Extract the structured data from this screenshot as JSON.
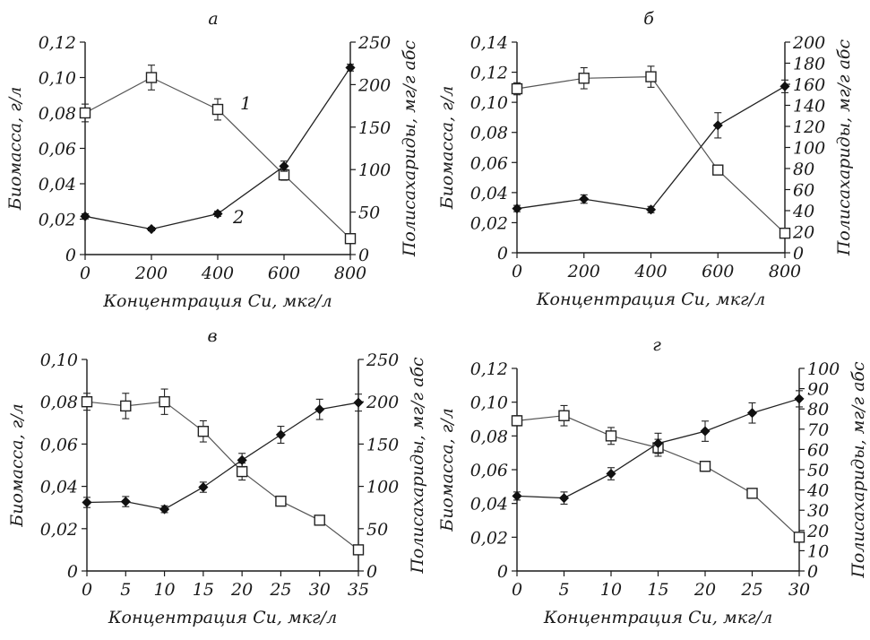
{
  "figure": {
    "panels_common": {
      "xlabel": "Концентрация Cu, мкг/л",
      "ylabel_left": "Биомасса, г/л",
      "ylabel_right": "Полисахариды, мг/г абс"
    }
  },
  "chart_data": [
    {
      "type": "line",
      "panel": "а",
      "xlabel": "Концентрация Cu, мкг/л",
      "ylabel": "Биомасса, г/л",
      "ylabel_right": "Полисахариды, мг/г абс",
      "x": [
        0,
        200,
        400,
        600,
        800
      ],
      "x_ticks": [
        "0",
        "200",
        "400",
        "600",
        "800"
      ],
      "xlim": [
        0,
        800
      ],
      "ylim": [
        0,
        0.12
      ],
      "y_ticks": [
        "0",
        "0,02",
        "0,04",
        "0,06",
        "0,08",
        "0,10",
        "0,12"
      ],
      "y_right_lim": [
        0,
        250
      ],
      "y_right_ticks": [
        "0",
        "50",
        "100",
        "150",
        "200",
        "250"
      ],
      "series_labels": [
        "1",
        "2"
      ],
      "series": [
        {
          "name": "1",
          "axis": "left",
          "marker": "square",
          "values": [
            0.08,
            0.1,
            0.082,
            0.045,
            0.009
          ],
          "errors": [
            0.005,
            0.007,
            0.006,
            0.003,
            0.002
          ]
        },
        {
          "name": "2",
          "axis": "right",
          "marker": "diamond",
          "values": [
            45,
            30,
            48,
            104,
            220
          ],
          "errors": [
            3,
            2,
            3,
            6,
            4
          ]
        }
      ]
    },
    {
      "type": "line",
      "panel": "б",
      "xlabel": "Концентрация Cu, мкг/л",
      "ylabel": "Биомасса, г/л",
      "ylabel_right": "Полисахариды, мг/г абс",
      "x": [
        0,
        200,
        400,
        600,
        800
      ],
      "x_ticks": [
        "0",
        "200",
        "400",
        "600",
        "800"
      ],
      "xlim": [
        0,
        800
      ],
      "ylim": [
        0,
        0.14
      ],
      "y_ticks": [
        "0",
        "0,02",
        "0,04",
        "0,06",
        "0,08",
        "0,10",
        "0,12",
        "0,14"
      ],
      "y_right_lim": [
        0,
        200
      ],
      "y_right_ticks": [
        "0",
        "20",
        "40",
        "60",
        "80",
        "100",
        "120",
        "140",
        "160",
        "180",
        "200"
      ],
      "series": [
        {
          "name": "",
          "axis": "left",
          "marker": "square",
          "values": [
            0.109,
            0.116,
            0.117,
            0.055,
            0.013
          ],
          "errors": [
            0.004,
            0.007,
            0.007,
            0.003,
            0.003
          ]
        },
        {
          "name": "",
          "axis": "right",
          "marker": "diamond",
          "values": [
            42,
            51,
            41,
            121,
            158
          ],
          "errors": [
            3,
            4,
            3,
            12,
            6
          ]
        }
      ]
    },
    {
      "type": "line",
      "panel": "в",
      "xlabel": "Концентрация Cu, мкг/л",
      "ylabel": "Биомасса, г/л",
      "ylabel_right": "Полисахариды, мг/г абс",
      "x": [
        0,
        5,
        10,
        15,
        20,
        25,
        30,
        35
      ],
      "x_ticks": [
        "0",
        "5",
        "10",
        "15",
        "20",
        "25",
        "30",
        "35"
      ],
      "xlim": [
        0,
        35
      ],
      "ylim": [
        0,
        0.1
      ],
      "y_ticks": [
        "0",
        "0,02",
        "0,04",
        "0,06",
        "0,08",
        "0,10"
      ],
      "y_right_lim": [
        0,
        250
      ],
      "y_right_ticks": [
        "0",
        "50",
        "100",
        "150",
        "200",
        "250"
      ],
      "series": [
        {
          "name": "",
          "axis": "left",
          "marker": "square",
          "values": [
            0.08,
            0.078,
            0.08,
            0.066,
            0.047,
            0.033,
            0.024,
            0.01
          ],
          "errors": [
            0.004,
            0.006,
            0.006,
            0.005,
            0.004,
            0.002,
            0.002,
            0.002
          ]
        },
        {
          "name": "",
          "axis": "right",
          "marker": "diamond",
          "values": [
            81,
            82,
            73,
            99,
            131,
            161,
            191,
            199
          ],
          "errors": [
            6,
            6,
            4,
            6,
            8,
            10,
            12,
            10
          ]
        }
      ]
    },
    {
      "type": "line",
      "panel": "г",
      "xlabel": "Концентрация Cu, мкг/л",
      "ylabel": "Биомасса, г/л",
      "ylabel_right": "Полисахариды, мг/г абс",
      "x": [
        0,
        5,
        10,
        15,
        20,
        25,
        30
      ],
      "x_ticks": [
        "0",
        "5",
        "10",
        "15",
        "20",
        "25",
        "30"
      ],
      "xlim": [
        0,
        30
      ],
      "ylim": [
        0,
        0.12
      ],
      "y_ticks": [
        "0",
        "0,02",
        "0,04",
        "0,06",
        "0,08",
        "0,10",
        "0,12"
      ],
      "y_right_lim": [
        0,
        100
      ],
      "y_right_ticks": [
        "0",
        "10",
        "20",
        "30",
        "40",
        "50",
        "60",
        "70",
        "80",
        "90",
        "100"
      ],
      "series": [
        {
          "name": "",
          "axis": "left",
          "marker": "square",
          "values": [
            0.089,
            0.092,
            0.08,
            0.073,
            0.062,
            0.046,
            0.02
          ],
          "errors": [
            0.003,
            0.006,
            0.005,
            0.005,
            0.003,
            0.002,
            0.002
          ]
        },
        {
          "name": "",
          "axis": "right",
          "marker": "diamond",
          "values": [
            37,
            36,
            48,
            63,
            69,
            78,
            85
          ],
          "errors": [
            2,
            3,
            3,
            5,
            5,
            5,
            4
          ]
        }
      ]
    }
  ]
}
